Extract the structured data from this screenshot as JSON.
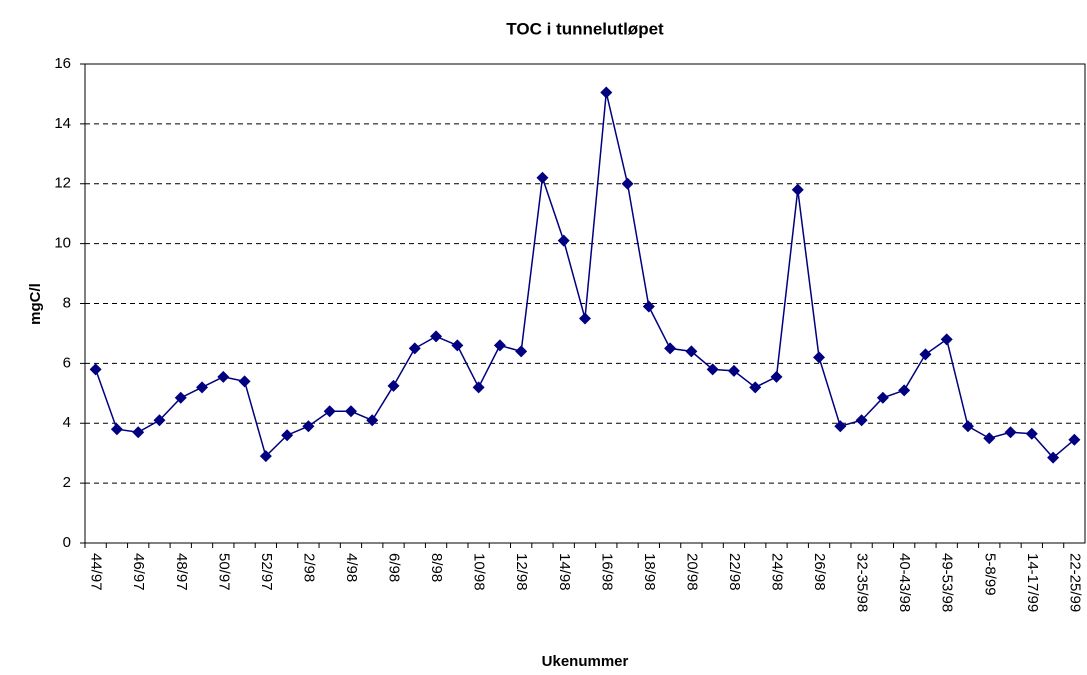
{
  "chart_data": {
    "type": "line",
    "title": "TOC i tunnelutløpet",
    "x_label": "Ukenummer",
    "y_label": "mgC/l",
    "categories": [
      "44/97",
      null,
      "46/97",
      null,
      "48/97",
      null,
      "50/97",
      null,
      "52/97",
      null,
      "2/98",
      null,
      "4/98",
      null,
      "6/98",
      null,
      "8/98",
      null,
      "10/98",
      null,
      "12/98",
      null,
      "14/98",
      null,
      "16/98",
      null,
      "18/98",
      null,
      "20/98",
      null,
      "22/98",
      null,
      "24/98",
      null,
      "26/98",
      null,
      "32-35/98",
      null,
      "40-43/98",
      null,
      "49-53/98",
      null,
      "5-8/99",
      null,
      "14-17/99",
      null,
      "22-25/99"
    ],
    "values": [
      5.8,
      3.8,
      3.7,
      4.1,
      4.85,
      5.2,
      5.55,
      5.4,
      2.9,
      3.6,
      3.9,
      4.4,
      4.4,
      4.1,
      5.25,
      6.5,
      6.9,
      6.6,
      5.2,
      6.6,
      6.4,
      12.2,
      10.1,
      7.5,
      15.05,
      12.0,
      7.9,
      6.5,
      6.4,
      5.8,
      5.75,
      5.2,
      5.55,
      11.8,
      6.2,
      3.9,
      4.1,
      4.85,
      5.1,
      6.3,
      6.8,
      3.9,
      3.5,
      3.7,
      3.65,
      2.85,
      3.45
    ],
    "color": "#000080",
    "ylim": [
      0,
      16
    ],
    "yticks": [
      0,
      2,
      4,
      6,
      8,
      10,
      12,
      14,
      16
    ],
    "grid": true
  }
}
